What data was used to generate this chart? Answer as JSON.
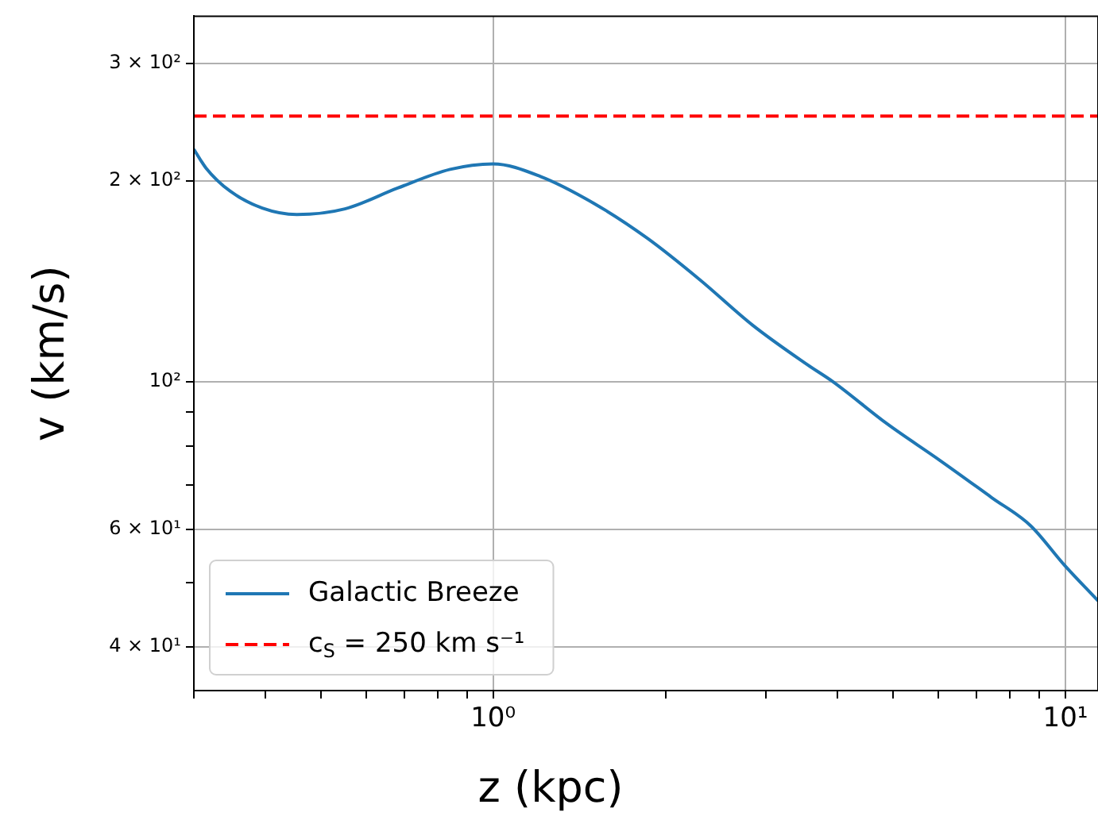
{
  "chart_data": {
    "type": "line",
    "xlabel": "z (kpc)",
    "ylabel": "v (km/s)",
    "log": "xy",
    "grid": true,
    "legend": "bottom left",
    "marker": "none",
    "line_style": "solid",
    "xlim": [
      0.3,
      11.4
    ],
    "ylim": [
      34.4,
      353
    ],
    "xticks": [
      {
        "value": 0.3,
        "label": null
      },
      {
        "value": 0.4,
        "label": null
      },
      {
        "value": 0.5,
        "label": null
      },
      {
        "value": 0.6,
        "label": null
      },
      {
        "value": 0.7,
        "label": null
      },
      {
        "value": 0.8,
        "label": null
      },
      {
        "value": 0.9,
        "label": null
      },
      {
        "value": 1,
        "label": "10⁰"
      },
      {
        "value": 2,
        "label": null
      },
      {
        "value": 3,
        "label": null
      },
      {
        "value": 4,
        "label": null
      },
      {
        "value": 5,
        "label": null
      },
      {
        "value": 6,
        "label": null
      },
      {
        "value": 7,
        "label": null
      },
      {
        "value": 8,
        "label": null
      },
      {
        "value": 9,
        "label": null
      },
      {
        "value": 10,
        "label": "10¹"
      }
    ],
    "yticks": [
      {
        "value": 40,
        "label": "4 × 10¹"
      },
      {
        "value": 50,
        "label": null
      },
      {
        "value": 60,
        "label": "6 × 10¹"
      },
      {
        "value": 70,
        "label": null
      },
      {
        "value": 80,
        "label": null
      },
      {
        "value": 90,
        "label": null
      },
      {
        "value": 100,
        "label": "10²"
      },
      {
        "value": 200,
        "label": "2 × 10²"
      },
      {
        "value": 300,
        "label": "3 × 10²"
      }
    ],
    "series": [
      {
        "name": "Galactic Breeze",
        "color": "#1f77b4",
        "x": [
          0.3,
          0.315,
          0.347,
          0.395,
          0.454,
          0.551,
          0.681,
          0.841,
          1.0,
          1.21,
          1.5,
          1.86,
          2.3,
          2.84,
          3.54,
          3.92,
          4.88,
          6.03,
          7.43,
          8.69,
          9.95,
          11.4
        ],
        "values": [
          223,
          209,
          193,
          182,
          178,
          181.5,
          195,
          208,
          212,
          203,
          185,
          164,
          142,
          121.5,
          106,
          100,
          86.4,
          76.2,
          67,
          60.8,
          53.1,
          46.9
        ]
      }
    ],
    "ref_lines": [
      {
        "axis": "y",
        "value": 250,
        "label": "c$_{S}$ = 250 km s⁻¹",
        "color": "#ff0000",
        "line_style": "dashed"
      }
    ]
  }
}
